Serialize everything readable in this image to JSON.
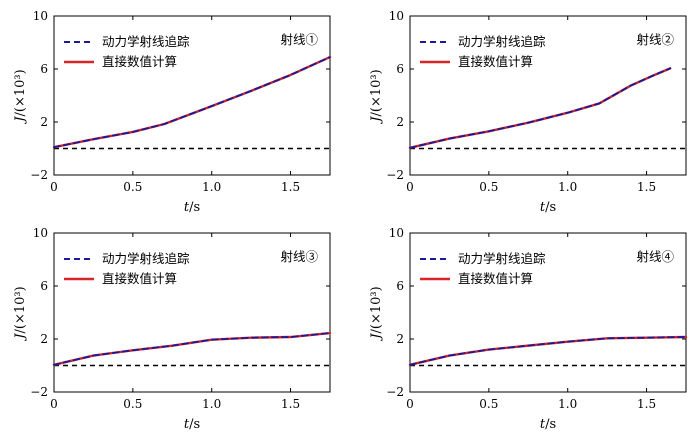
{
  "chart_data": [
    {
      "type": "line",
      "title": "射线①",
      "xlabel_var": "t",
      "xlabel_unit": "/s",
      "ylabel_var": "J",
      "ylabel_unit": "/(×10³)",
      "xlim": [
        0,
        1.75
      ],
      "ylim": [
        -2,
        10
      ],
      "xticks": [
        {
          "v": 0,
          "label": "0"
        },
        {
          "v": 0.5,
          "label": "0.5"
        },
        {
          "v": 1.0,
          "label": "1.0"
        },
        {
          "v": 1.5,
          "label": "1.5"
        }
      ],
      "yticks": [
        {
          "v": -2,
          "label": "−2"
        },
        {
          "v": 2,
          "label": "2"
        },
        {
          "v": 6,
          "label": "6"
        },
        {
          "v": 10,
          "label": "10"
        }
      ],
      "baseline": 0,
      "series": [
        {
          "name": "动力学射线追踪",
          "style": "dashed",
          "color": "#1a1a99",
          "x": [
            0,
            0.25,
            0.5,
            0.7,
            1.0,
            1.25,
            1.5,
            1.75
          ],
          "y": [
            0.1,
            0.7,
            1.25,
            1.85,
            3.2,
            4.35,
            5.55,
            6.9
          ]
        },
        {
          "name": "直接数值计算",
          "style": "solid",
          "color": "#d62728",
          "x": [
            0,
            0.25,
            0.5,
            0.7,
            1.0,
            1.25,
            1.5,
            1.75
          ],
          "y": [
            0.1,
            0.7,
            1.25,
            1.85,
            3.2,
            4.35,
            5.55,
            6.9
          ]
        }
      ]
    },
    {
      "type": "line",
      "title": "射线②",
      "xlabel_var": "t",
      "xlabel_unit": "/s",
      "ylabel_var": "J",
      "ylabel_unit": "/(×10³)",
      "xlim": [
        0,
        1.75
      ],
      "ylim": [
        -2,
        10
      ],
      "xticks": [
        {
          "v": 0,
          "label": "0"
        },
        {
          "v": 0.5,
          "label": "0.5"
        },
        {
          "v": 1.0,
          "label": "1.0"
        },
        {
          "v": 1.5,
          "label": "1.5"
        }
      ],
      "yticks": [
        {
          "v": -2,
          "label": "−2"
        },
        {
          "v": 2,
          "label": "2"
        },
        {
          "v": 6,
          "label": "6"
        },
        {
          "v": 10,
          "label": "10"
        }
      ],
      "baseline": 0,
      "series": [
        {
          "name": "动力学射线追踪",
          "style": "dashed",
          "color": "#1a1a99",
          "x": [
            0,
            0.25,
            0.5,
            0.75,
            1.0,
            1.2,
            1.4,
            1.55,
            1.65
          ],
          "y": [
            0.05,
            0.75,
            1.3,
            1.95,
            2.7,
            3.4,
            4.75,
            5.55,
            6.05
          ]
        },
        {
          "name": "直接数值计算",
          "style": "solid",
          "color": "#d62728",
          "x": [
            0,
            0.25,
            0.5,
            0.75,
            1.0,
            1.2,
            1.4,
            1.55,
            1.65
          ],
          "y": [
            0.05,
            0.75,
            1.3,
            1.95,
            2.7,
            3.4,
            4.75,
            5.55,
            6.05
          ]
        }
      ]
    },
    {
      "type": "line",
      "title": "射线③",
      "xlabel_var": "t",
      "xlabel_unit": "/s",
      "ylabel_var": "J",
      "ylabel_unit": "/(×10³)",
      "xlim": [
        0,
        1.75
      ],
      "ylim": [
        -2,
        10
      ],
      "xticks": [
        {
          "v": 0,
          "label": "0"
        },
        {
          "v": 0.5,
          "label": "0.5"
        },
        {
          "v": 1.0,
          "label": "1.0"
        },
        {
          "v": 1.5,
          "label": "1.5"
        }
      ],
      "yticks": [
        {
          "v": -2,
          "label": "−2"
        },
        {
          "v": 2,
          "label": "2"
        },
        {
          "v": 6,
          "label": "6"
        },
        {
          "v": 10,
          "label": "10"
        }
      ],
      "baseline": 0,
      "series": [
        {
          "name": "动力学射线追踪",
          "style": "dashed",
          "color": "#1a1a99",
          "x": [
            0,
            0.25,
            0.5,
            0.75,
            1.0,
            1.25,
            1.5,
            1.75
          ],
          "y": [
            0.05,
            0.75,
            1.15,
            1.5,
            1.95,
            2.1,
            2.15,
            2.45
          ]
        },
        {
          "name": "直接数值计算",
          "style": "solid",
          "color": "#d62728",
          "x": [
            0,
            0.25,
            0.5,
            0.75,
            1.0,
            1.25,
            1.5,
            1.75
          ],
          "y": [
            0.05,
            0.75,
            1.15,
            1.5,
            1.95,
            2.1,
            2.15,
            2.45
          ]
        }
      ]
    },
    {
      "type": "line",
      "title": "射线④",
      "xlabel_var": "t",
      "xlabel_unit": "/s",
      "ylabel_var": "J",
      "ylabel_unit": "/(×10³)",
      "xlim": [
        0,
        1.75
      ],
      "ylim": [
        -2,
        10
      ],
      "xticks": [
        {
          "v": 0,
          "label": "0"
        },
        {
          "v": 0.5,
          "label": "0.5"
        },
        {
          "v": 1.0,
          "label": "1.0"
        },
        {
          "v": 1.5,
          "label": "1.5"
        }
      ],
      "yticks": [
        {
          "v": -2,
          "label": "−2"
        },
        {
          "v": 2,
          "label": "2"
        },
        {
          "v": 6,
          "label": "6"
        },
        {
          "v": 10,
          "label": "10"
        }
      ],
      "baseline": 0,
      "series": [
        {
          "name": "动力学射线追踪",
          "style": "dashed",
          "color": "#1a1a99",
          "x": [
            0,
            0.25,
            0.5,
            0.75,
            1.0,
            1.25,
            1.5,
            1.75
          ],
          "y": [
            0.05,
            0.75,
            1.2,
            1.5,
            1.8,
            2.05,
            2.1,
            2.15
          ]
        },
        {
          "name": "直接数值计算",
          "style": "solid",
          "color": "#d62728",
          "x": [
            0,
            0.25,
            0.5,
            0.75,
            1.0,
            1.25,
            1.5,
            1.75
          ],
          "y": [
            0.05,
            0.75,
            1.2,
            1.5,
            1.8,
            2.05,
            2.1,
            2.15
          ]
        }
      ]
    }
  ]
}
